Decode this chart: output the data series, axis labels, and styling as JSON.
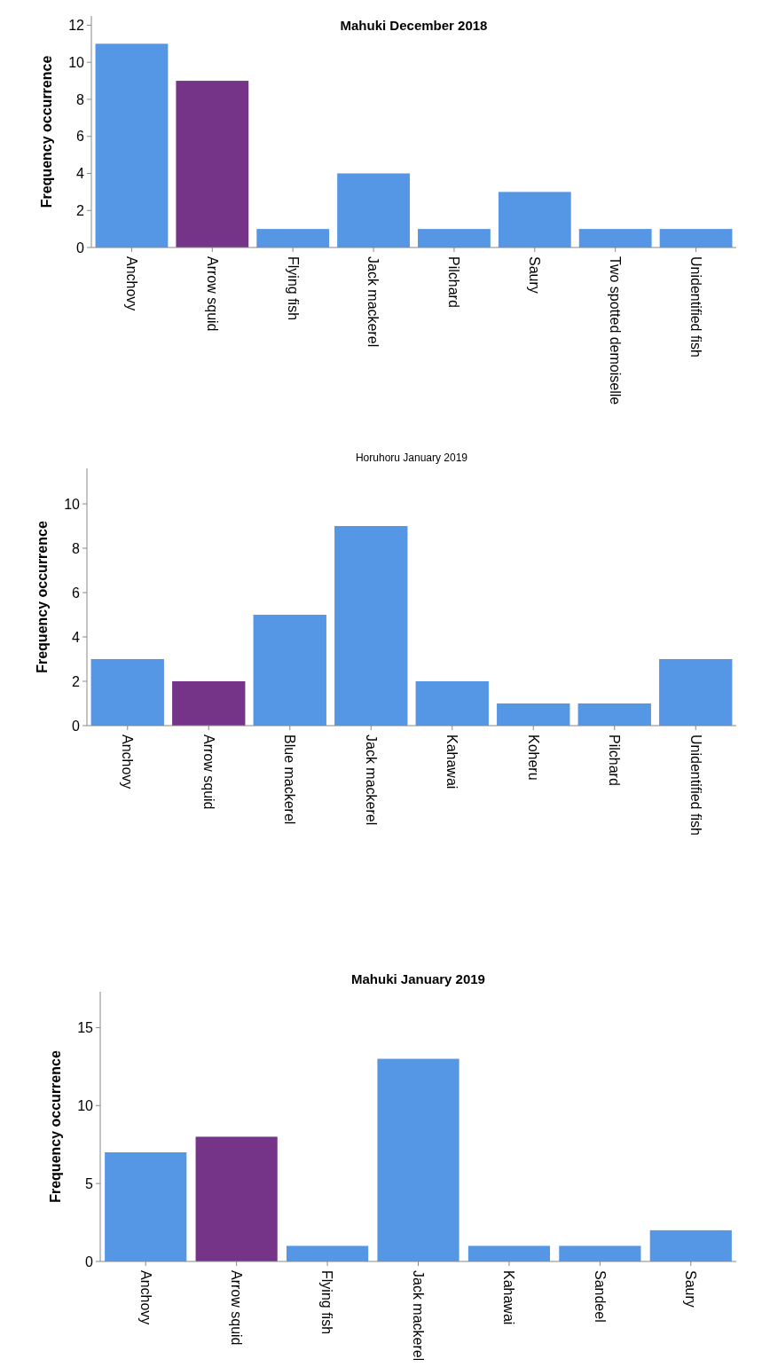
{
  "chart_data": [
    {
      "type": "bar",
      "title": "Mahuki  December 2018",
      "ylabel": "Frequency occurrence",
      "categories": [
        "Anchovy",
        "Arrow squid",
        "Flying fish",
        "Jack mackerel",
        "Pilchard",
        "Saury",
        "Two spotted demoiselle",
        "Unidentified fish"
      ],
      "values": [
        11,
        9,
        1,
        4,
        1,
        3,
        1,
        1
      ],
      "colors": [
        "#5596e5",
        "#763489",
        "#5596e5",
        "#5596e5",
        "#5596e5",
        "#5596e5",
        "#5596e5",
        "#5596e5"
      ],
      "ylim": [
        0,
        12.5
      ],
      "yticks": [
        0,
        2,
        4,
        6,
        8,
        10,
        12
      ],
      "grid": false
    },
    {
      "type": "bar",
      "title": "Horuhoru January 2019",
      "ylabel": "Frequency occurrence",
      "categories": [
        "Anchovy",
        "Arrow squid",
        "Blue mackerel",
        "Jack mackerel",
        "Kahawai",
        "Koheru",
        "Pilchard",
        "Unidentified fish"
      ],
      "values": [
        3,
        2,
        5,
        9,
        2,
        1,
        1,
        3
      ],
      "colors": [
        "#5596e5",
        "#763489",
        "#5596e5",
        "#5596e5",
        "#5596e5",
        "#5596e5",
        "#5596e5",
        "#5596e5"
      ],
      "ylim": [
        0,
        11.6
      ],
      "yticks": [
        0,
        2,
        4,
        6,
        8,
        10
      ],
      "grid": false
    },
    {
      "type": "bar",
      "title": "Mahuki January 2019",
      "ylabel": "Frequency occurrence",
      "categories": [
        "Anchovy",
        "Arrow squid",
        "Flying fish",
        "Jack mackerel",
        "Kahawai",
        "Sandeel",
        "Saury"
      ],
      "values": [
        7,
        8,
        1,
        13,
        1,
        1,
        2
      ],
      "colors": [
        "#5596e5",
        "#763489",
        "#5596e5",
        "#5596e5",
        "#5596e5",
        "#5596e5",
        "#5596e5"
      ],
      "ylim": [
        0,
        17.3
      ],
      "yticks": [
        0,
        5,
        10,
        15
      ],
      "grid": false
    }
  ]
}
